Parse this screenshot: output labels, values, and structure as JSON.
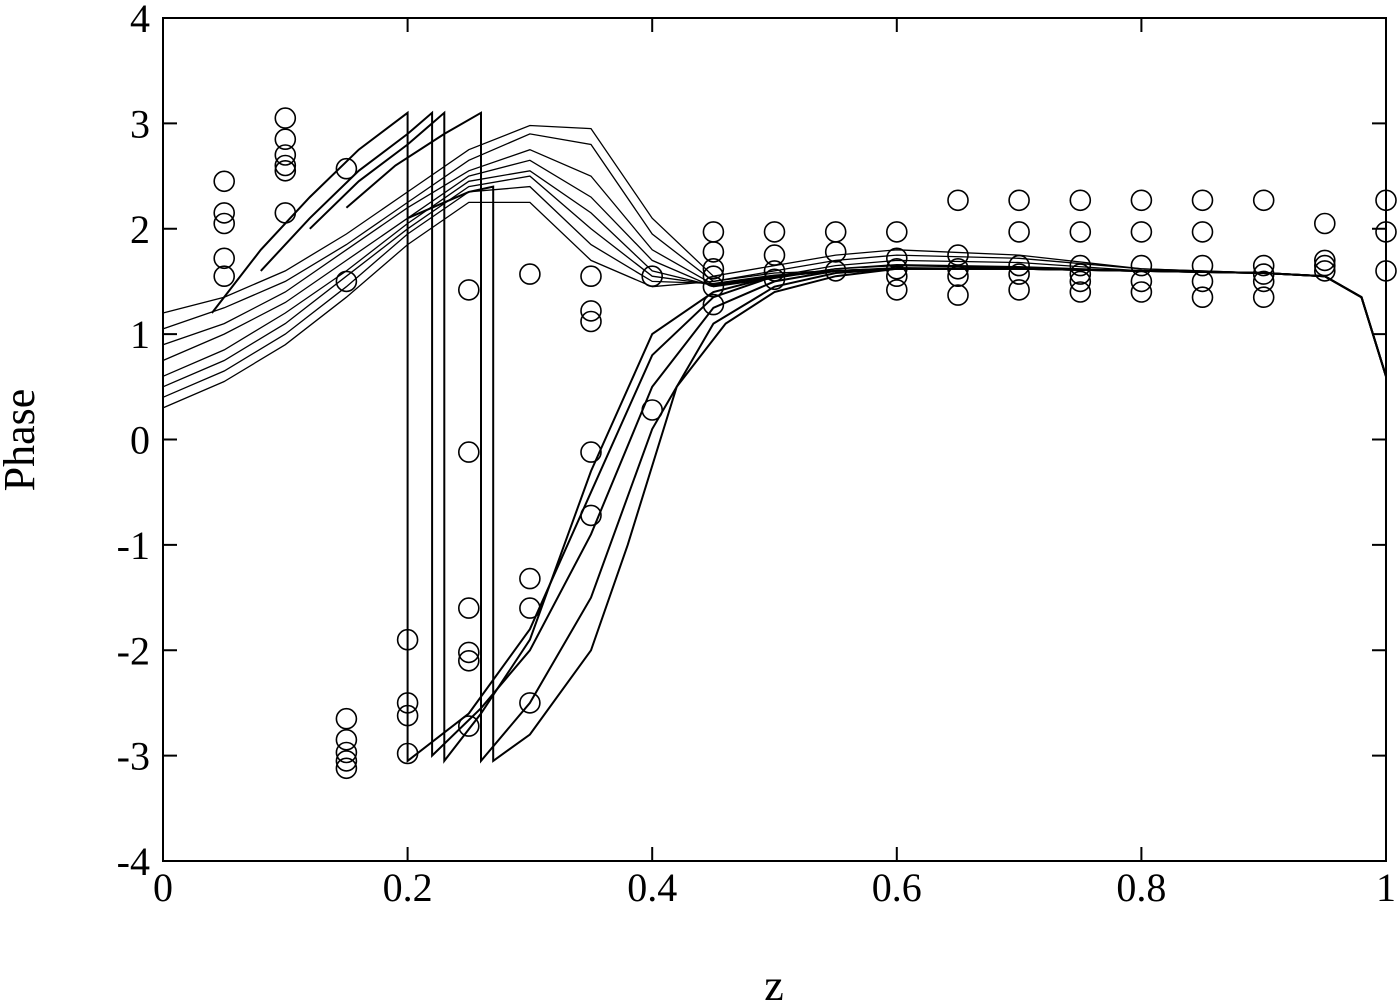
{
  "chart_data": {
    "type": "scatter",
    "title": "",
    "xlabel": "z",
    "ylabel": "Phase",
    "xlim": [
      0,
      1
    ],
    "ylim": [
      -4,
      4
    ],
    "xticks": [
      0,
      0.2,
      0.4,
      0.6,
      0.8,
      1
    ],
    "xtick_labels": [
      "0",
      "0.2",
      "0.4",
      "0.6",
      "0.8",
      "1"
    ],
    "yticks": [
      -4,
      -3,
      -2,
      -1,
      0,
      1,
      2,
      3,
      4
    ],
    "ytick_labels": [
      "-4",
      "-3",
      "-2",
      "-1",
      "0",
      "1",
      "2",
      "3",
      "4"
    ],
    "grid": false,
    "legend": "none",
    "line_color": "#000000",
    "marker": "open-circle",
    "points": [
      {
        "x": 0.05,
        "y": 2.45
      },
      {
        "x": 0.05,
        "y": 2.15
      },
      {
        "x": 0.05,
        "y": 2.05
      },
      {
        "x": 0.05,
        "y": 1.72
      },
      {
        "x": 0.05,
        "y": 1.55
      },
      {
        "x": 0.1,
        "y": 3.05
      },
      {
        "x": 0.1,
        "y": 2.85
      },
      {
        "x": 0.1,
        "y": 2.7
      },
      {
        "x": 0.1,
        "y": 2.6
      },
      {
        "x": 0.1,
        "y": 2.55
      },
      {
        "x": 0.1,
        "y": 2.15
      },
      {
        "x": 0.15,
        "y": 2.57
      },
      {
        "x": 0.15,
        "y": 1.5
      },
      {
        "x": 0.15,
        "y": -2.65
      },
      {
        "x": 0.15,
        "y": -2.85
      },
      {
        "x": 0.15,
        "y": -2.97
      },
      {
        "x": 0.15,
        "y": -3.05
      },
      {
        "x": 0.15,
        "y": -3.12
      },
      {
        "x": 0.2,
        "y": -1.9
      },
      {
        "x": 0.2,
        "y": -2.5
      },
      {
        "x": 0.2,
        "y": -2.62
      },
      {
        "x": 0.2,
        "y": -2.98
      },
      {
        "x": 0.25,
        "y": 1.42
      },
      {
        "x": 0.25,
        "y": -0.12
      },
      {
        "x": 0.25,
        "y": -1.6
      },
      {
        "x": 0.25,
        "y": -2.02
      },
      {
        "x": 0.25,
        "y": -2.1
      },
      {
        "x": 0.25,
        "y": -2.72
      },
      {
        "x": 0.3,
        "y": 1.57
      },
      {
        "x": 0.3,
        "y": -1.32
      },
      {
        "x": 0.3,
        "y": -1.6
      },
      {
        "x": 0.3,
        "y": -2.5
      },
      {
        "x": 0.35,
        "y": 1.55
      },
      {
        "x": 0.35,
        "y": 1.22
      },
      {
        "x": 0.35,
        "y": 1.12
      },
      {
        "x": 0.35,
        "y": -0.12
      },
      {
        "x": 0.35,
        "y": -0.72
      },
      {
        "x": 0.4,
        "y": 1.55
      },
      {
        "x": 0.4,
        "y": 0.28
      },
      {
        "x": 0.45,
        "y": 1.97
      },
      {
        "x": 0.45,
        "y": 1.78
      },
      {
        "x": 0.45,
        "y": 1.62
      },
      {
        "x": 0.45,
        "y": 1.55
      },
      {
        "x": 0.45,
        "y": 1.45
      },
      {
        "x": 0.45,
        "y": 1.28
      },
      {
        "x": 0.5,
        "y": 1.97
      },
      {
        "x": 0.5,
        "y": 1.75
      },
      {
        "x": 0.5,
        "y": 1.6
      },
      {
        "x": 0.5,
        "y": 1.52
      },
      {
        "x": 0.55,
        "y": 1.97
      },
      {
        "x": 0.55,
        "y": 1.78
      },
      {
        "x": 0.55,
        "y": 1.6
      },
      {
        "x": 0.6,
        "y": 1.97
      },
      {
        "x": 0.6,
        "y": 1.72
      },
      {
        "x": 0.6,
        "y": 1.62
      },
      {
        "x": 0.6,
        "y": 1.55
      },
      {
        "x": 0.6,
        "y": 1.42
      },
      {
        "x": 0.65,
        "y": 2.27
      },
      {
        "x": 0.65,
        "y": 1.75
      },
      {
        "x": 0.65,
        "y": 1.62
      },
      {
        "x": 0.65,
        "y": 1.55
      },
      {
        "x": 0.65,
        "y": 1.37
      },
      {
        "x": 0.7,
        "y": 2.27
      },
      {
        "x": 0.7,
        "y": 1.97
      },
      {
        "x": 0.7,
        "y": 1.65
      },
      {
        "x": 0.7,
        "y": 1.57
      },
      {
        "x": 0.7,
        "y": 1.42
      },
      {
        "x": 0.75,
        "y": 2.27
      },
      {
        "x": 0.75,
        "y": 1.97
      },
      {
        "x": 0.75,
        "y": 1.65
      },
      {
        "x": 0.75,
        "y": 1.57
      },
      {
        "x": 0.75,
        "y": 1.5
      },
      {
        "x": 0.75,
        "y": 1.4
      },
      {
        "x": 0.8,
        "y": 2.27
      },
      {
        "x": 0.8,
        "y": 1.97
      },
      {
        "x": 0.8,
        "y": 1.65
      },
      {
        "x": 0.8,
        "y": 1.5
      },
      {
        "x": 0.8,
        "y": 1.4
      },
      {
        "x": 0.85,
        "y": 2.27
      },
      {
        "x": 0.85,
        "y": 1.97
      },
      {
        "x": 0.85,
        "y": 1.65
      },
      {
        "x": 0.85,
        "y": 1.5
      },
      {
        "x": 0.85,
        "y": 1.35
      },
      {
        "x": 0.9,
        "y": 2.27
      },
      {
        "x": 0.9,
        "y": 1.65
      },
      {
        "x": 0.9,
        "y": 1.57
      },
      {
        "x": 0.9,
        "y": 1.5
      },
      {
        "x": 0.9,
        "y": 1.35
      },
      {
        "x": 0.95,
        "y": 2.05
      },
      {
        "x": 0.95,
        "y": 1.7
      },
      {
        "x": 0.95,
        "y": 1.65
      },
      {
        "x": 0.95,
        "y": 1.6
      },
      {
        "x": 1.0,
        "y": 2.27
      },
      {
        "x": 1.0,
        "y": 1.97
      },
      {
        "x": 1.0,
        "y": 1.6
      }
    ],
    "curves": [
      {
        "x": [
          0,
          0.05,
          0.1,
          0.15,
          0.2,
          0.25,
          0.3,
          0.35,
          0.4,
          0.45,
          0.5,
          0.55,
          0.6,
          0.7,
          0.8,
          0.9,
          0.95,
          0.98,
          1.0
        ],
        "y": [
          0.3,
          0.55,
          0.9,
          1.35,
          1.85,
          2.25,
          2.25,
          1.7,
          1.45,
          1.5,
          1.58,
          1.6,
          1.62,
          1.62,
          1.6,
          1.58,
          1.55,
          1.35,
          0.6
        ]
      },
      {
        "x": [
          0,
          0.05,
          0.1,
          0.15,
          0.2,
          0.25,
          0.3,
          0.35,
          0.4,
          0.45,
          0.5,
          0.55,
          0.6,
          0.7,
          0.8,
          0.9,
          0.95,
          0.98,
          1.0
        ],
        "y": [
          0.4,
          0.65,
          1.0,
          1.45,
          1.95,
          2.35,
          2.4,
          1.85,
          1.5,
          1.48,
          1.56,
          1.6,
          1.62,
          1.62,
          1.6,
          1.58,
          1.55,
          1.35,
          0.6
        ]
      },
      {
        "x": [
          0,
          0.05,
          0.1,
          0.15,
          0.2,
          0.25,
          0.3,
          0.35,
          0.4,
          0.45,
          0.5,
          0.55,
          0.6,
          0.7,
          0.8,
          0.9,
          0.95,
          0.98,
          1.0
        ],
        "y": [
          0.5,
          0.75,
          1.1,
          1.55,
          2.0,
          2.4,
          2.5,
          2.0,
          1.55,
          1.47,
          1.55,
          1.6,
          1.63,
          1.62,
          1.6,
          1.58,
          1.55,
          1.35,
          0.6
        ]
      },
      {
        "x": [
          0,
          0.05,
          0.1,
          0.15,
          0.2,
          0.25,
          0.3,
          0.35,
          0.4,
          0.45,
          0.5,
          0.55,
          0.6,
          0.7,
          0.8,
          0.9,
          0.95,
          0.98,
          1.0
        ],
        "y": [
          0.6,
          0.85,
          1.2,
          1.6,
          2.05,
          2.45,
          2.55,
          2.15,
          1.6,
          1.46,
          1.54,
          1.62,
          1.65,
          1.63,
          1.6,
          1.58,
          1.55,
          1.35,
          0.6
        ]
      },
      {
        "x": [
          0,
          0.05,
          0.1,
          0.15,
          0.2,
          0.25,
          0.3,
          0.35,
          0.4,
          0.45,
          0.5,
          0.55,
          0.6,
          0.7,
          0.8,
          0.9,
          0.95,
          0.98,
          1.0
        ],
        "y": [
          0.75,
          1.0,
          1.3,
          1.7,
          2.1,
          2.5,
          2.65,
          2.3,
          1.7,
          1.45,
          1.53,
          1.62,
          1.66,
          1.64,
          1.6,
          1.58,
          1.55,
          1.35,
          0.6
        ]
      },
      {
        "x": [
          0,
          0.05,
          0.1,
          0.15,
          0.2,
          0.25,
          0.3,
          0.35,
          0.4,
          0.45,
          0.5,
          0.55,
          0.6,
          0.7,
          0.8,
          0.9,
          0.95,
          0.98,
          1.0
        ],
        "y": [
          0.9,
          1.1,
          1.4,
          1.8,
          2.2,
          2.55,
          2.75,
          2.5,
          1.8,
          1.47,
          1.55,
          1.65,
          1.7,
          1.68,
          1.6,
          1.58,
          1.55,
          1.35,
          0.6
        ]
      },
      {
        "x": [
          0,
          0.05,
          0.1,
          0.15,
          0.2,
          0.25,
          0.3,
          0.35,
          0.4,
          0.45,
          0.5,
          0.55,
          0.6,
          0.7,
          0.8,
          0.9,
          0.95,
          0.98,
          1.0
        ],
        "y": [
          1.05,
          1.25,
          1.5,
          1.85,
          2.25,
          2.65,
          2.9,
          2.8,
          1.95,
          1.5,
          1.6,
          1.7,
          1.75,
          1.72,
          1.62,
          1.58,
          1.55,
          1.35,
          0.6
        ]
      },
      {
        "x": [
          0,
          0.05,
          0.1,
          0.15,
          0.2,
          0.25,
          0.3,
          0.35,
          0.4,
          0.45,
          0.5,
          0.55,
          0.6,
          0.7,
          0.8,
          0.9,
          0.95,
          0.98,
          1.0
        ],
        "y": [
          1.2,
          1.35,
          1.6,
          1.95,
          2.35,
          2.75,
          2.98,
          2.95,
          2.1,
          1.55,
          1.65,
          1.75,
          1.8,
          1.75,
          1.62,
          1.58,
          1.55,
          1.35,
          0.6
        ]
      },
      {
        "x": [
          0.04,
          0.08,
          0.12,
          0.16,
          0.2,
          0.2,
          0.25,
          0.3,
          0.35,
          0.4,
          0.45,
          0.5,
          0.55,
          0.6,
          0.7,
          0.8,
          0.9,
          0.95,
          0.98,
          1.0
        ],
        "y": [
          1.2,
          1.8,
          2.3,
          2.75,
          3.1,
          -3.05,
          -2.6,
          -1.8,
          -0.5,
          0.8,
          1.35,
          1.55,
          1.6,
          1.62,
          1.62,
          1.6,
          1.58,
          1.55,
          1.35,
          0.6
        ]
      },
      {
        "x": [
          0.08,
          0.12,
          0.16,
          0.2,
          0.22,
          0.22,
          0.26,
          0.3,
          0.35,
          0.4,
          0.45,
          0.5,
          0.55,
          0.6,
          0.7,
          0.8,
          0.9,
          0.95,
          0.98,
          1.0
        ],
        "y": [
          1.6,
          2.1,
          2.55,
          2.9,
          3.1,
          -3.0,
          -2.55,
          -2.0,
          -0.9,
          0.5,
          1.25,
          1.5,
          1.6,
          1.62,
          1.62,
          1.6,
          1.58,
          1.55,
          1.35,
          0.6
        ]
      },
      {
        "x": [
          0.12,
          0.16,
          0.2,
          0.23,
          0.23,
          0.26,
          0.3,
          0.35,
          0.4,
          0.45,
          0.5,
          0.55,
          0.6,
          0.7,
          0.8,
          0.9,
          0.95,
          0.98,
          1.0
        ],
        "y": [
          2.0,
          2.45,
          2.8,
          3.1,
          -3.05,
          -2.6,
          -1.9,
          -0.3,
          1.0,
          1.4,
          1.55,
          1.6,
          1.62,
          1.62,
          1.6,
          1.58,
          1.55,
          1.35,
          0.6
        ]
      },
      {
        "x": [
          0.15,
          0.19,
          0.23,
          0.26,
          0.26,
          0.3,
          0.35,
          0.4,
          0.45,
          0.5,
          0.55,
          0.6,
          0.7,
          0.8,
          0.9,
          0.95,
          0.98,
          1.0
        ],
        "y": [
          2.2,
          2.6,
          2.9,
          3.1,
          -3.05,
          -2.5,
          -1.5,
          0.1,
          1.1,
          1.45,
          1.58,
          1.62,
          1.62,
          1.6,
          1.58,
          1.55,
          1.35,
          0.6
        ]
      },
      {
        "x": [
          0.2,
          0.23,
          0.25,
          0.27,
          0.27,
          0.3,
          0.35,
          0.38,
          0.42,
          0.46,
          0.5,
          0.55,
          0.6,
          0.7,
          0.8,
          0.9,
          0.95,
          0.98,
          1.0
        ],
        "y": [
          2.1,
          2.25,
          2.35,
          2.4,
          -3.05,
          -2.8,
          -2.0,
          -1.0,
          0.5,
          1.1,
          1.4,
          1.55,
          1.62,
          1.62,
          1.6,
          1.58,
          1.55,
          1.35,
          0.6
        ]
      }
    ]
  }
}
